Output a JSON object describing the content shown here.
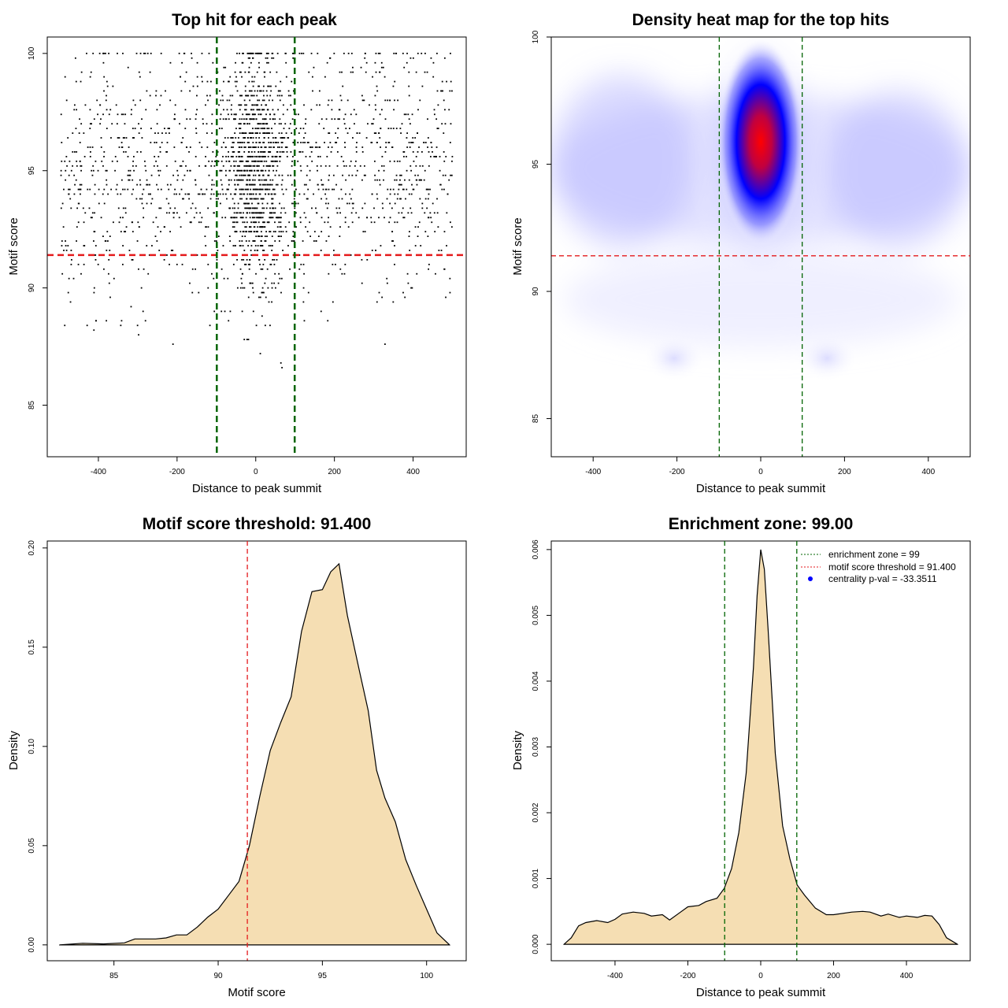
{
  "colors": {
    "threshold_line": "#e41a1c",
    "zone_line": "#006400",
    "density_fill": "#f5deb3",
    "heat_low": "#ffffff",
    "heat_mid": "#0000ff",
    "heat_high": "#ff0000",
    "scatter_point": "#000000"
  },
  "chart_data": [
    {
      "id": "scatter",
      "type": "scatter",
      "title": "Top hit for each peak",
      "xlabel": "Distance to peak summit",
      "ylabel": "Motif score",
      "xlim": [
        -530,
        535
      ],
      "ylim": [
        82.8,
        100.7
      ],
      "xticks": [
        -400,
        -200,
        0,
        200,
        400
      ],
      "yticks": [
        85,
        90,
        95,
        100
      ],
      "grid": false,
      "hlines": [
        91.4
      ],
      "vlines": [
        -99,
        99
      ],
      "approx_points": 2400,
      "background_points": 1500,
      "central_points": 900,
      "central_sd": 35,
      "x_range": [
        -495,
        500
      ],
      "score_mean": 95,
      "score_sd": 2.7,
      "score_range": [
        83.5,
        100
      ]
    },
    {
      "id": "heatmap",
      "type": "heatmap",
      "title": "Density heat map for the top hits",
      "xlabel": "Distance to peak summit",
      "ylabel": "Motif score",
      "xlim": [
        -500,
        500
      ],
      "ylim": [
        83.5,
        100
      ],
      "xticks": [
        -400,
        -200,
        0,
        200,
        400
      ],
      "yticks": [
        85,
        90,
        95,
        100
      ],
      "grid": false,
      "hlines": [
        91.4
      ],
      "vlines": [
        -99,
        99
      ],
      "peak_x": 0,
      "peak_y": 95.8,
      "colorscale": [
        "#ffffff",
        "#0000ff",
        "#ff0000"
      ]
    },
    {
      "id": "score-density",
      "type": "area",
      "title": "Motif score threshold: 91.400",
      "xlabel": "Motif score",
      "ylabel": "Density",
      "xlim": [
        81.8,
        101.9
      ],
      "ylim": [
        -0.008,
        0.2035
      ],
      "xticks": [
        85,
        90,
        95,
        100
      ],
      "yticks": [
        0.0,
        0.05,
        0.1,
        0.15,
        0.2
      ],
      "ytick_labels": [
        "0.00",
        "0.05",
        "0.10",
        "0.15",
        "0.20"
      ],
      "grid": false,
      "vlines": [
        91.4
      ],
      "x": [
        82.4,
        83.5,
        84.5,
        85.5,
        86.0,
        87.0,
        87.5,
        88.0,
        88.5,
        89.0,
        89.5,
        90.0,
        90.5,
        91.0,
        91.5,
        92.0,
        92.5,
        93.0,
        93.5,
        94.0,
        94.5,
        95.0,
        95.4,
        95.8,
        96.2,
        96.8,
        97.2,
        97.6,
        98.0,
        98.5,
        99.0,
        99.5,
        100.0,
        100.5,
        101.1
      ],
      "y": [
        0.0,
        0.0008,
        0.0005,
        0.001,
        0.003,
        0.003,
        0.0035,
        0.005,
        0.005,
        0.009,
        0.014,
        0.018,
        0.025,
        0.032,
        0.05,
        0.075,
        0.098,
        0.112,
        0.125,
        0.158,
        0.178,
        0.179,
        0.188,
        0.192,
        0.166,
        0.137,
        0.118,
        0.088,
        0.074,
        0.062,
        0.043,
        0.03,
        0.018,
        0.006,
        0.0
      ]
    },
    {
      "id": "distance-density",
      "type": "area",
      "title": "Enrichment zone: 99.00",
      "xlabel": "Distance to peak summit",
      "ylabel": "Density",
      "xlim": [
        -575,
        575
      ],
      "ylim": [
        -0.00025,
        0.00613
      ],
      "xticks": [
        -400,
        -200,
        0,
        200,
        400
      ],
      "yticks": [
        0.0,
        0.001,
        0.002,
        0.003,
        0.004,
        0.005,
        0.006
      ],
      "ytick_labels": [
        "0.000",
        "0.001",
        "0.002",
        "0.003",
        "0.004",
        "0.005",
        "0.006"
      ],
      "grid": false,
      "vlines": [
        -99,
        99
      ],
      "x": [
        -540,
        -520,
        -500,
        -480,
        -450,
        -420,
        -400,
        -380,
        -350,
        -320,
        -300,
        -270,
        -250,
        -220,
        -200,
        -170,
        -150,
        -120,
        -100,
        -80,
        -60,
        -40,
        -20,
        -10,
        0,
        10,
        20,
        40,
        60,
        80,
        100,
        120,
        150,
        180,
        200,
        250,
        280,
        300,
        330,
        350,
        380,
        400,
        430,
        450,
        470,
        490,
        510,
        540
      ],
      "y": [
        0.0,
        0.0001,
        0.00028,
        0.00033,
        0.00036,
        0.00033,
        0.00038,
        0.00046,
        0.00049,
        0.00047,
        0.00043,
        0.00045,
        0.00037,
        0.00049,
        0.00057,
        0.00059,
        0.00065,
        0.0007,
        0.00085,
        0.00115,
        0.0017,
        0.0026,
        0.0042,
        0.0053,
        0.006,
        0.0057,
        0.0048,
        0.0029,
        0.0018,
        0.0013,
        0.0009,
        0.00075,
        0.00055,
        0.00045,
        0.00045,
        0.00049,
        0.0005,
        0.00049,
        0.00043,
        0.00046,
        0.00041,
        0.00043,
        0.00041,
        0.00044,
        0.00043,
        0.0003,
        0.0001,
        0.0
      ]
    }
  ],
  "legend": {
    "position": "top-right",
    "items": [
      {
        "label": "enrichment zone = 99",
        "kind": "line",
        "color": "#006400"
      },
      {
        "label": "motif score threshold = 91.400",
        "kind": "line",
        "color": "#e41a1c"
      },
      {
        "label": "centrality p-val = -33.3511",
        "kind": "point",
        "color": "#0000ff"
      }
    ]
  }
}
